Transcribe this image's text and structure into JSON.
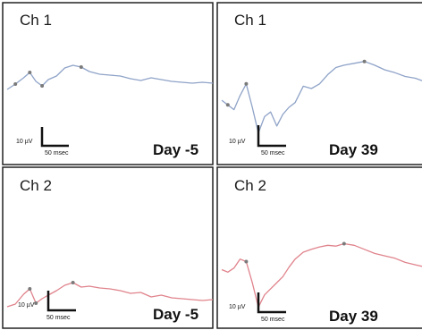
{
  "chart_data": {
    "type": "line",
    "layout": "2x2 grid",
    "colors": {
      "ch1": "#8fa3c8",
      "ch2": "#e0838c",
      "marker": "#7a7a7a",
      "border": "#222222"
    },
    "panels": [
      {
        "id": "a",
        "channel": "Ch 1",
        "day": "Day -5",
        "scale_v": "10 µV",
        "scale_t": "50 msec",
        "series": [
          {
            "x": [
              0,
              0.04,
              0.08,
              0.11,
              0.14,
              0.17,
              0.2,
              0.24,
              0.28,
              0.32,
              0.36,
              0.4,
              0.45,
              0.5,
              0.55,
              0.6,
              0.65,
              0.7,
              0.75,
              0.8,
              0.85,
              0.9,
              0.95,
              1.0
            ],
            "y": [
              -1.0,
              0.2,
              1.6,
              2.8,
              0.8,
              -0.2,
              1.2,
              2.0,
              3.8,
              4.4,
              4.0,
              3.0,
              2.4,
              2.2,
              2.0,
              1.4,
              1.0,
              1.6,
              1.2,
              0.8,
              0.6,
              0.4,
              0.6,
              0.4
            ]
          }
        ],
        "markers": [
          {
            "x": 0.04,
            "y": 0.2
          },
          {
            "x": 0.11,
            "y": 2.8
          },
          {
            "x": 0.17,
            "y": -0.2
          },
          {
            "x": 0.36,
            "y": 4.0
          }
        ],
        "ylim": [
          -7,
          7
        ]
      },
      {
        "id": "b",
        "channel": "Ch 1",
        "day": "Day 39",
        "scale_v": "10 µV",
        "scale_t": "50 msec",
        "series": [
          {
            "x": [
              0,
              0.03,
              0.06,
              0.09,
              0.12,
              0.15,
              0.18,
              0.21,
              0.24,
              0.27,
              0.3,
              0.33,
              0.36,
              0.4,
              0.44,
              0.48,
              0.52,
              0.56,
              0.6,
              0.65,
              0.7,
              0.75,
              0.8,
              0.85,
              0.9,
              0.95,
              1.0
            ],
            "y": [
              -0.5,
              -1.5,
              -2.5,
              0.5,
              3.0,
              -2.0,
              -7.5,
              -4.0,
              -3.0,
              -6.0,
              -3.5,
              -2.0,
              -1.0,
              2.5,
              2.0,
              3.0,
              5.0,
              6.5,
              7.0,
              7.4,
              7.8,
              7.0,
              6.0,
              5.4,
              4.6,
              4.2,
              3.4
            ]
          }
        ],
        "markers": [
          {
            "x": 0.03,
            "y": -1.5
          },
          {
            "x": 0.12,
            "y": 3.0
          },
          {
            "x": 0.7,
            "y": 7.8
          }
        ],
        "ylim": [
          -11,
          11
        ]
      },
      {
        "id": "c",
        "channel": "Ch 2",
        "day": "Day -5",
        "scale_v": "10 µV",
        "scale_t": "50 msec",
        "series": [
          {
            "x": [
              0,
              0.04,
              0.08,
              0.11,
              0.14,
              0.17,
              0.2,
              0.24,
              0.28,
              0.32,
              0.36,
              0.4,
              0.45,
              0.5,
              0.55,
              0.6,
              0.65,
              0.7,
              0.75,
              0.8,
              0.85,
              0.9,
              0.95,
              1.0
            ],
            "y": [
              -3.6,
              -3.0,
              -0.8,
              0.4,
              -2.8,
              -1.8,
              -1.0,
              0.0,
              1.2,
              1.8,
              0.8,
              1.0,
              0.6,
              0.4,
              0.0,
              -0.6,
              -0.4,
              -1.4,
              -1.0,
              -1.6,
              -1.8,
              -2.0,
              -2.2,
              -2.0
            ]
          }
        ],
        "markers": [
          {
            "x": 0.11,
            "y": 0.4
          },
          {
            "x": 0.14,
            "y": -2.8
          },
          {
            "x": 0.32,
            "y": 1.8
          }
        ],
        "ylim": [
          -7,
          7
        ]
      },
      {
        "id": "d",
        "channel": "Ch 2",
        "day": "Day 39",
        "scale_v": "10 µV",
        "scale_t": "50 msec",
        "series": [
          {
            "x": [
              0,
              0.03,
              0.06,
              0.09,
              0.12,
              0.15,
              0.18,
              0.21,
              0.24,
              0.27,
              0.3,
              0.33,
              0.36,
              0.4,
              0.44,
              0.48,
              0.52,
              0.56,
              0.6,
              0.65,
              0.7,
              0.75,
              0.8,
              0.85,
              0.9,
              0.95,
              1.0
            ],
            "y": [
              1.2,
              0.6,
              1.6,
              3.8,
              3.2,
              -2.0,
              -8.0,
              -5.0,
              -3.5,
              -2.0,
              -0.5,
              1.8,
              3.8,
              5.5,
              6.2,
              6.8,
              7.2,
              7.0,
              7.6,
              7.2,
              6.2,
              5.2,
              4.6,
              4.0,
              3.0,
              2.4,
              1.8
            ]
          }
        ],
        "markers": [
          {
            "x": 0.12,
            "y": 3.2
          },
          {
            "x": 0.6,
            "y": 7.6
          }
        ],
        "ylim": [
          -11,
          11
        ]
      }
    ]
  }
}
